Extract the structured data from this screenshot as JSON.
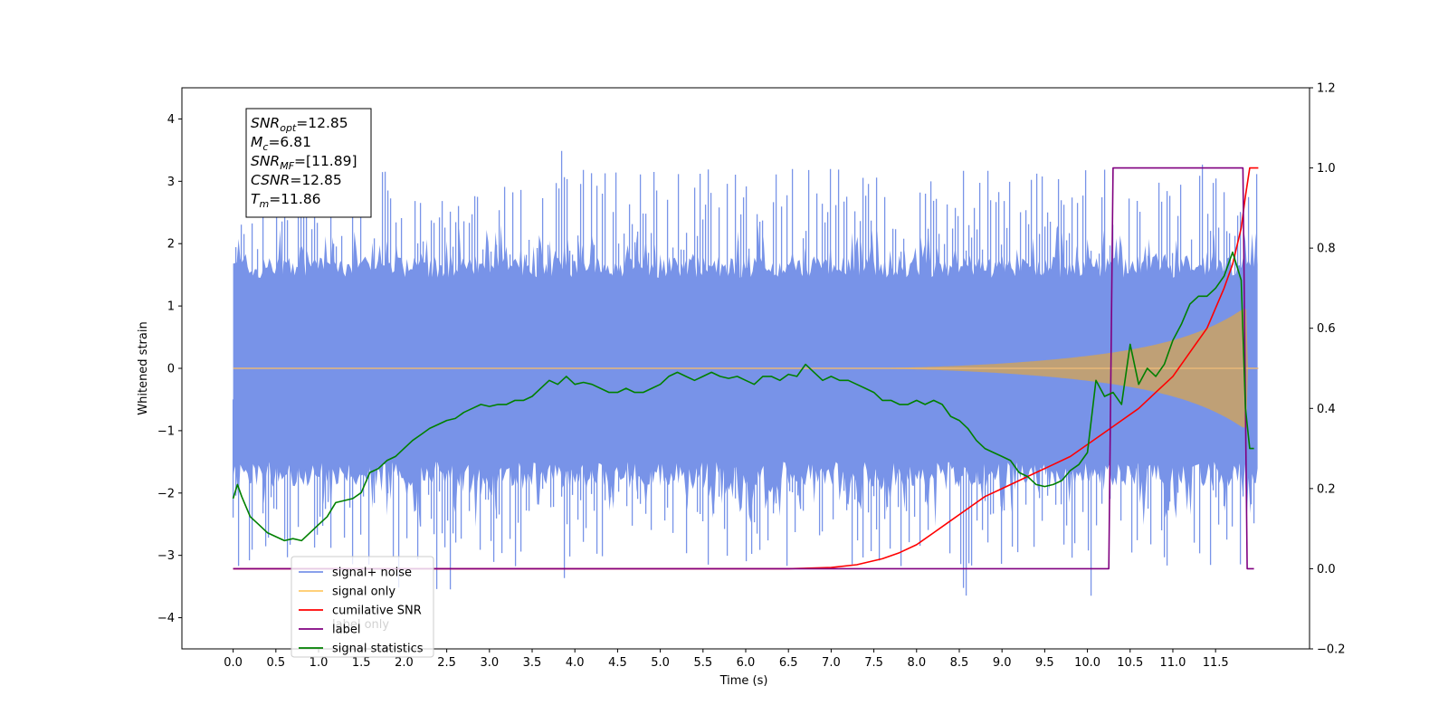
{
  "chart_data": {
    "type": "line",
    "title": "",
    "xlabel": "Time (s)",
    "ylabel": "Whitened strain",
    "xlim": [
      -0.6,
      12.6
    ],
    "ylim": [
      -4.5,
      4.5
    ],
    "y2lim": [
      -0.2,
      1.2
    ],
    "x_ticks": [
      "0.0",
      "0.5",
      "1.0",
      "1.5",
      "2.0",
      "2.5",
      "3.0",
      "3.5",
      "4.0",
      "4.5",
      "5.0",
      "5.5",
      "6.0",
      "6.5",
      "7.0",
      "7.5",
      "8.0",
      "8.5",
      "9.0",
      "9.5",
      "10.0",
      "10.5",
      "11.0",
      "11.5"
    ],
    "y_ticks": [
      "−4",
      "−3",
      "−2",
      "−1",
      "0",
      "1",
      "2",
      "3",
      "4"
    ],
    "y2_ticks": [
      "−0.2",
      "0.0",
      "0.2",
      "0.4",
      "0.6",
      "0.8",
      "1.0",
      "1.2"
    ],
    "annotation_lines": [
      {
        "sym": "SNR",
        "sub": "opt",
        "value": "=12.85"
      },
      {
        "sym": "M",
        "sub": "c",
        "value": "=6.81"
      },
      {
        "sym": "SNR",
        "sub": "MF",
        "value": "=[11.89]"
      },
      {
        "sym": "CSNR",
        "sub": "",
        "value": "=12.85"
      },
      {
        "sym": "T",
        "sub": "m",
        "value": "=11.86"
      }
    ],
    "legend": {
      "placement": "lower-left",
      "entries": [
        {
          "label": "signal+ noise",
          "color": "#7893e8"
        },
        {
          "label": "signal only",
          "color": "#ffc966"
        },
        {
          "label": "cumilative SNR",
          "color": "#ff0000"
        },
        {
          "label": "label",
          "color": "#800080"
        },
        {
          "label": "signal statistics",
          "color": "#008000"
        }
      ],
      "hidden_text": "label only"
    },
    "colors": {
      "noise": "#7893e8",
      "signal": "#c3a070",
      "csnr": "#ff0000",
      "label": "#800080",
      "stats": "#008000"
    },
    "series": [
      {
        "name": "cumilative SNR",
        "axis": "right",
        "x": [
          0,
          6.5,
          7.0,
          7.3,
          7.6,
          7.8,
          8.0,
          8.2,
          8.4,
          8.6,
          8.8,
          9.0,
          9.2,
          9.4,
          9.6,
          9.8,
          10.0,
          10.2,
          10.4,
          10.6,
          10.8,
          11.0,
          11.2,
          11.4,
          11.6,
          11.7,
          11.8,
          11.85,
          11.9,
          12.0
        ],
        "y": [
          0,
          0,
          0.003,
          0.01,
          0.025,
          0.04,
          0.06,
          0.09,
          0.12,
          0.15,
          0.18,
          0.2,
          0.22,
          0.24,
          0.26,
          0.28,
          0.31,
          0.34,
          0.37,
          0.4,
          0.44,
          0.48,
          0.54,
          0.6,
          0.7,
          0.76,
          0.85,
          0.93,
          1.0,
          1.0
        ]
      },
      {
        "name": "label",
        "axis": "right",
        "x": [
          0,
          10.25,
          10.3,
          11.82,
          11.87,
          11.95
        ],
        "y": [
          0,
          0,
          1,
          1,
          0,
          0
        ]
      },
      {
        "name": "signal statistics",
        "axis": "right",
        "x": [
          0,
          0.05,
          0.1,
          0.2,
          0.3,
          0.4,
          0.5,
          0.6,
          0.7,
          0.8,
          0.9,
          1.0,
          1.1,
          1.2,
          1.3,
          1.4,
          1.5,
          1.6,
          1.7,
          1.8,
          1.9,
          2.0,
          2.1,
          2.2,
          2.3,
          2.4,
          2.5,
          2.6,
          2.7,
          2.8,
          2.9,
          3.0,
          3.1,
          3.2,
          3.3,
          3.4,
          3.5,
          3.6,
          3.7,
          3.8,
          3.9,
          4.0,
          4.1,
          4.2,
          4.3,
          4.4,
          4.5,
          4.6,
          4.7,
          4.8,
          4.9,
          5.0,
          5.1,
          5.2,
          5.3,
          5.4,
          5.5,
          5.6,
          5.7,
          5.8,
          5.9,
          6.0,
          6.1,
          6.2,
          6.3,
          6.4,
          6.5,
          6.6,
          6.7,
          6.8,
          6.9,
          7.0,
          7.1,
          7.2,
          7.3,
          7.4,
          7.5,
          7.6,
          7.7,
          7.8,
          7.9,
          8.0,
          8.1,
          8.2,
          8.3,
          8.4,
          8.5,
          8.6,
          8.7,
          8.8,
          8.9,
          9.0,
          9.1,
          9.2,
          9.3,
          9.4,
          9.5,
          9.6,
          9.7,
          9.8,
          9.9,
          10.0,
          10.1,
          10.2,
          10.3,
          10.4,
          10.5,
          10.6,
          10.7,
          10.8,
          10.9,
          11.0,
          11.1,
          11.2,
          11.3,
          11.4,
          11.5,
          11.6,
          11.7,
          11.8,
          11.85,
          11.9,
          11.95
        ],
        "y": [
          0.175,
          0.21,
          0.18,
          0.13,
          0.11,
          0.09,
          0.08,
          0.07,
          0.075,
          0.07,
          0.09,
          0.11,
          0.13,
          0.165,
          0.17,
          0.175,
          0.19,
          0.24,
          0.25,
          0.27,
          0.28,
          0.3,
          0.32,
          0.335,
          0.35,
          0.36,
          0.37,
          0.375,
          0.39,
          0.4,
          0.41,
          0.405,
          0.41,
          0.41,
          0.42,
          0.42,
          0.43,
          0.45,
          0.47,
          0.46,
          0.48,
          0.46,
          0.465,
          0.46,
          0.45,
          0.44,
          0.44,
          0.45,
          0.44,
          0.44,
          0.45,
          0.46,
          0.48,
          0.49,
          0.48,
          0.47,
          0.48,
          0.49,
          0.48,
          0.475,
          0.48,
          0.47,
          0.46,
          0.48,
          0.48,
          0.47,
          0.485,
          0.48,
          0.51,
          0.49,
          0.47,
          0.48,
          0.47,
          0.47,
          0.46,
          0.45,
          0.44,
          0.42,
          0.42,
          0.41,
          0.41,
          0.42,
          0.41,
          0.42,
          0.41,
          0.38,
          0.37,
          0.35,
          0.32,
          0.3,
          0.29,
          0.28,
          0.27,
          0.24,
          0.23,
          0.21,
          0.205,
          0.21,
          0.22,
          0.245,
          0.26,
          0.29,
          0.47,
          0.43,
          0.44,
          0.41,
          0.56,
          0.46,
          0.5,
          0.48,
          0.51,
          0.57,
          0.61,
          0.66,
          0.68,
          0.68,
          0.7,
          0.73,
          0.79,
          0.72,
          0.4,
          0.3,
          0.3
        ]
      }
    ]
  }
}
